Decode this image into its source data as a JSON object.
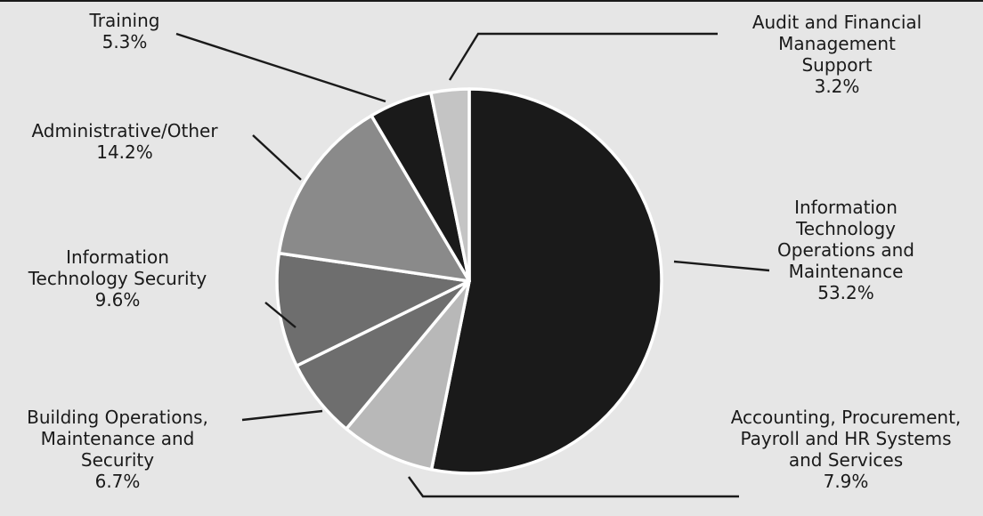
{
  "chart_data": {
    "type": "pie",
    "title": "",
    "start_angle_deg": 0,
    "direction": "clockwise",
    "slices": [
      {
        "label": "Information Technology Operations and Maintenance",
        "label_lines": [
          "Information",
          "Technology",
          "Operations and",
          "Maintenance"
        ],
        "value_label": "53.2%",
        "value": 53.2,
        "color": "#1a1a1a"
      },
      {
        "label": "Accounting, Procurement, Payroll and HR Systems and Services",
        "label_lines": [
          "Accounting, Procurement,",
          "Payroll and HR Systems",
          "and Services"
        ],
        "value_label": "7.9%",
        "value": 7.9,
        "color": "#b8b8b8"
      },
      {
        "label": "Building Operations, Maintenance and Security",
        "label_lines": [
          "Building Operations,",
          "Maintenance and",
          "Security"
        ],
        "value_label": "6.7%",
        "value": 6.7,
        "color": "#6e6e6e"
      },
      {
        "label": "Information Technology Security",
        "label_lines": [
          "Information",
          "Technology Security"
        ],
        "value_label": "9.6%",
        "value": 9.6,
        "color": "#6e6e6e"
      },
      {
        "label": "Administrative/Other",
        "label_lines": [
          "Administrative/Other"
        ],
        "value_label": "14.2%",
        "value": 14.2,
        "color": "#8a8a8a"
      },
      {
        "label": "Training",
        "label_lines": [
          "Training"
        ],
        "value_label": "5.3%",
        "value": 5.3,
        "color": "#1a1a1a"
      },
      {
        "label": "Audit and Financial Management Support",
        "label_lines": [
          "Audit and Financial",
          "Management",
          "Support"
        ],
        "value_label": "3.2%",
        "value": 3.2,
        "color": "#c4c4c4"
      }
    ]
  }
}
